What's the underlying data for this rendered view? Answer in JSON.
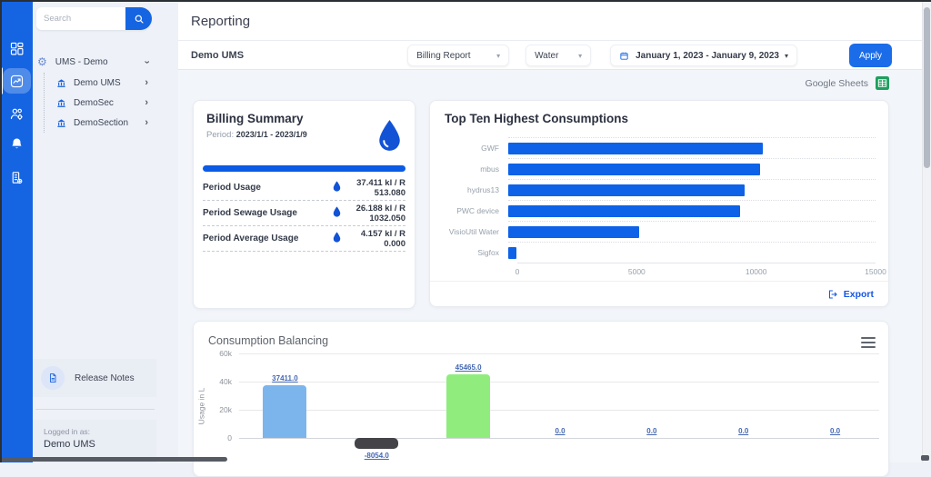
{
  "colors": {
    "primary": "#1565e2",
    "top_chart_bar": "#0d62e8",
    "sheets_green": "#1f9e5f",
    "series": [
      "#7cb5ec",
      "#434348",
      "#90ed7d"
    ]
  },
  "icons": {
    "rail": [
      "dashboard-grid",
      "reports-chart",
      "users-settings",
      "notifications-bell",
      "devices-building"
    ],
    "search": "magnifier",
    "tree_root": "gear",
    "tree_child": "bank-building",
    "release_notes": "document",
    "date": "calendar",
    "google_sheets": "spreadsheet-grid",
    "billing": "water-drop",
    "export": "box-arrow-right",
    "chart_menu": "hamburger"
  },
  "sidebar": {
    "search": {
      "placeholder": "Search"
    },
    "tree": {
      "root_label": "UMS - Demo",
      "children": [
        {
          "label": "Demo UMS"
        },
        {
          "label": "DemoSec"
        },
        {
          "label": "DemoSection"
        }
      ]
    },
    "release_notes_label": "Release Notes",
    "logged_in_label": "Logged in as:",
    "logged_in_user": "Demo UMS"
  },
  "header": {
    "title": "Reporting",
    "org": "Demo UMS",
    "report_type": "Billing Report",
    "utility": "Water",
    "date_range": "January 1, 2023 - January 9, 2023",
    "apply_label": "Apply",
    "google_sheets_label": "Google Sheets"
  },
  "billing_summary": {
    "title": "Billing Summary",
    "period_label": "Period:",
    "period_value": "2023/1/1 - 2023/1/9",
    "rows": [
      {
        "label": "Period Usage",
        "value": "37.411 kl / R 513.080"
      },
      {
        "label": "Period Sewage Usage",
        "value": "26.188 kl / R 1032.050"
      },
      {
        "label": "Period Average Usage",
        "value": "4.157 kl / R 0.000"
      }
    ]
  },
  "top_consumptions": {
    "title": "Top Ten Highest Consumptions",
    "export_label": "Export"
  },
  "consumption_balancing": {
    "title": "Consumption Balancing"
  },
  "chart_data": [
    {
      "id": "top-ten",
      "type": "bar",
      "orientation": "horizontal",
      "title": "Top Ten Highest Consumptions",
      "categories": [
        "GWF",
        "mbus",
        "hydrus13",
        "PWC device",
        "VisioUtil Water",
        "Sigfox"
      ],
      "values": [
        10400,
        10270,
        9650,
        9460,
        5350,
        350
      ],
      "xlim": [
        0,
        15000
      ],
      "xticks": [
        0,
        5000,
        10000,
        15000
      ],
      "bar_color": "#0d62e8",
      "grid": "dotted-horizontal"
    },
    {
      "id": "consumption-balancing",
      "type": "bar",
      "title": "Consumption Balancing",
      "ylabel": "Usage in L",
      "values": [
        37411.0,
        -8054.0,
        45465.0,
        0.0,
        0.0,
        0.0,
        0.0
      ],
      "labels": [
        "37411.0",
        "-8054.0",
        "45465.0",
        "0.0",
        "0.0",
        "0.0",
        "0.0"
      ],
      "colors": [
        "#7cb5ec",
        "#434348",
        "#90ed7d"
      ],
      "yticks": [
        {
          "v": 0,
          "label": "0"
        },
        {
          "v": 20000,
          "label": "20k"
        },
        {
          "v": 40000,
          "label": "40k"
        },
        {
          "v": 60000,
          "label": "60k"
        }
      ],
      "ylim": [
        -10000,
        60000
      ],
      "grid": "horizontal",
      "note": "x-axis category labels cut off by viewport"
    }
  ]
}
